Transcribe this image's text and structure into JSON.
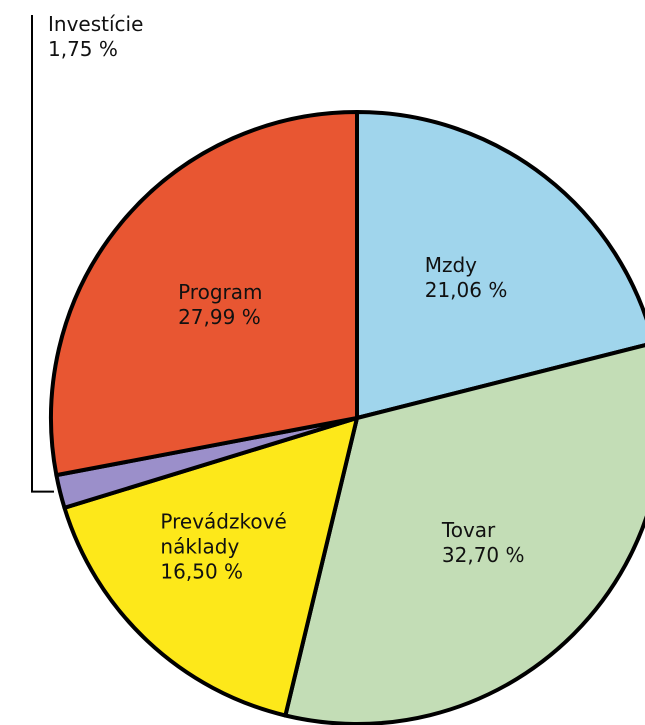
{
  "chart_data": {
    "type": "pie",
    "categories": [
      "Mzdy",
      "Tovar",
      "Prevádzkové náklady",
      "Investície",
      "Program"
    ],
    "values": [
      21.06,
      32.7,
      16.5,
      1.75,
      27.99
    ],
    "value_labels": [
      "21,06 %",
      "32,70 %",
      "16,50 %",
      "1,75 %",
      "27,99 %"
    ],
    "colors": [
      "#a0d5ec",
      "#c3ddb6",
      "#fde81a",
      "#9b8fca",
      "#e85632"
    ]
  }
}
